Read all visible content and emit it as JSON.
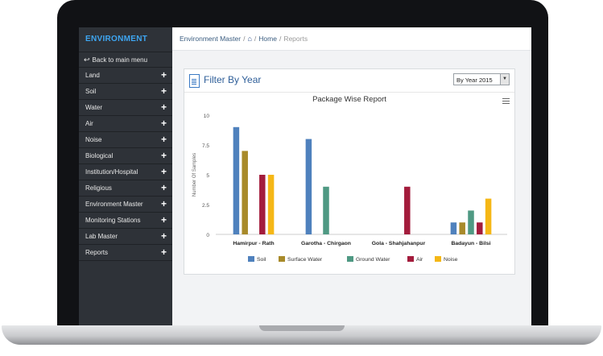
{
  "sidebar": {
    "title": "ENVIRONMENT",
    "back_label": "Back to main menu",
    "items": [
      {
        "label": "Land"
      },
      {
        "label": "Soil"
      },
      {
        "label": "Water"
      },
      {
        "label": "Air"
      },
      {
        "label": "Noise"
      },
      {
        "label": "Biological"
      },
      {
        "label": "Institution/Hospital"
      },
      {
        "label": "Religious"
      },
      {
        "label": "Environment Master"
      },
      {
        "label": "Monitoring Stations"
      },
      {
        "label": "Lab Master"
      },
      {
        "label": "Reports"
      }
    ]
  },
  "breadcrumb": {
    "root": "Environment Master",
    "home": "Home",
    "current": "Reports"
  },
  "panel": {
    "title": "Filter By Year",
    "select_value": "By Year 2015"
  },
  "colors": {
    "Soil": "#4f81bd",
    "Surface Water": "#a88a2a",
    "Ground Water": "#4f9983",
    "Air": "#a31c3c",
    "Noise": "#f5b716"
  },
  "chart_data": {
    "type": "bar",
    "title": "Package Wise Report",
    "ylabel": "Number Of Samples",
    "xlabel": "",
    "ylim": [
      0,
      10
    ],
    "yticks": [
      "0",
      "2.5",
      "5",
      "7.5",
      "10"
    ],
    "legend_position": "bottom",
    "categories": [
      "Hamirpur - Rath",
      "Garotha - Chirgaon",
      "Gola - Shahjahanpur",
      "Badayun - Bilsi"
    ],
    "series": [
      {
        "name": "Soil",
        "values": [
          9,
          8,
          0,
          1
        ]
      },
      {
        "name": "Surface Water",
        "values": [
          7,
          0,
          0,
          1
        ]
      },
      {
        "name": "Ground Water",
        "values": [
          0,
          4,
          0,
          2
        ]
      },
      {
        "name": "Air",
        "values": [
          5,
          0,
          4,
          1
        ]
      },
      {
        "name": "Noise",
        "values": [
          5,
          0,
          0,
          3
        ]
      }
    ]
  }
}
